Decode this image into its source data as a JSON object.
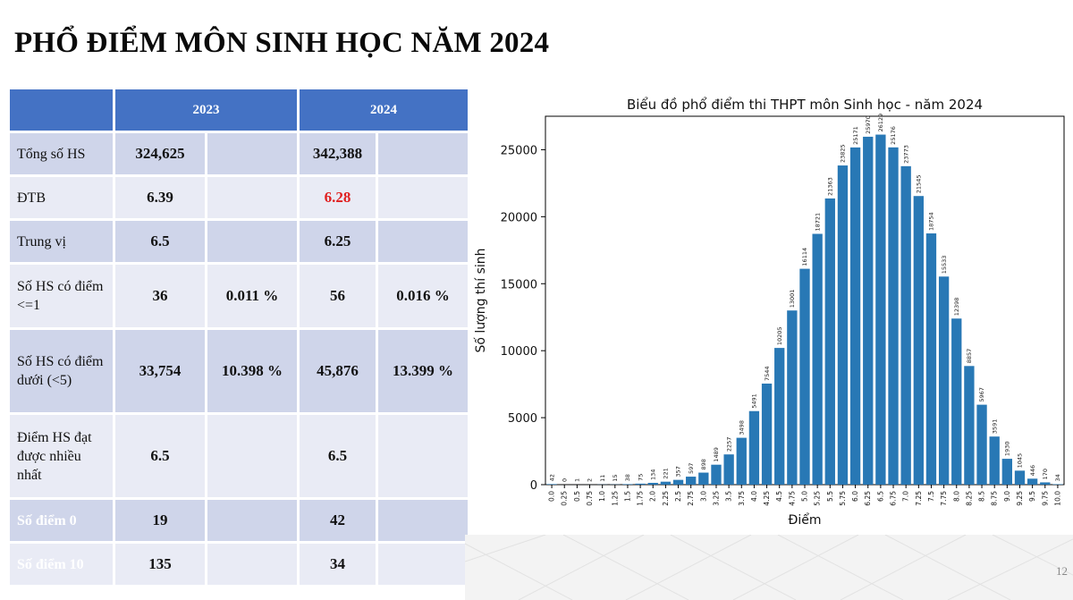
{
  "slide": {
    "title": "PHỔ ĐIỂM MÔN SINH HỌC NĂM 2024",
    "page_number": "12"
  },
  "table": {
    "headers": [
      "2023",
      "2024"
    ],
    "rows": [
      {
        "label": "Tổng số HS",
        "v2023": "324,625",
        "p2023": "",
        "v2024": "342,388",
        "p2024": ""
      },
      {
        "label": "ĐTB",
        "v2023": "6.39",
        "p2023": "",
        "v2024": "6.28",
        "p2024": ""
      },
      {
        "label": "Trung vị",
        "v2023": "6.5",
        "p2023": "",
        "v2024": "6.25",
        "p2024": ""
      },
      {
        "label": "Số HS có điểm <=1",
        "v2023": "36",
        "p2023": "0.011 %",
        "v2024": "56",
        "p2024": "0.016 %"
      },
      {
        "label": "Số HS có điểm dưới (<5)",
        "v2023": "33,754",
        "p2023": "10.398 %",
        "v2024": "45,876",
        "p2024": "13.399 %"
      },
      {
        "label": "Điểm HS đạt được nhiều nhất",
        "v2023": "6.5",
        "p2023": "",
        "v2024": "6.5",
        "p2024": ""
      },
      {
        "label": "Số điểm 0",
        "v2023": "19",
        "p2023": "",
        "v2024": "42",
        "p2024": ""
      },
      {
        "label": "Số điểm 10",
        "v2023": "135",
        "p2023": "",
        "v2024": "34",
        "p2024": ""
      }
    ],
    "colors": {
      "header": "#4472c4",
      "row_dark": "#cfd5ea",
      "row_light": "#e9ebf5",
      "highlight": "#e02020"
    }
  },
  "chart_data": {
    "type": "bar",
    "title": "Biểu đồ phổ điểm thi THPT môn Sinh học - năm 2024",
    "xlabel": "Điểm",
    "ylabel": "Số lượng thí sinh",
    "ylim": [
      0,
      27500
    ],
    "yticks": [
      0,
      5000,
      10000,
      15000,
      20000,
      25000
    ],
    "bar_color": "#2878b5",
    "categories": [
      "0.0",
      "0.25",
      "0.5",
      "0.75",
      "1.0",
      "1.25",
      "1.5",
      "1.75",
      "2.0",
      "2.25",
      "2.5",
      "2.75",
      "3.0",
      "3.25",
      "3.5",
      "3.75",
      "4.0",
      "4.25",
      "4.5",
      "4.75",
      "5.0",
      "5.25",
      "5.5",
      "5.75",
      "6.0",
      "6.25",
      "6.5",
      "6.75",
      "7.0",
      "7.25",
      "7.5",
      "7.75",
      "8.0",
      "8.25",
      "8.5",
      "8.75",
      "9.0",
      "9.25",
      "9.5",
      "9.75",
      "10.0"
    ],
    "values": [
      42,
      0,
      1,
      2,
      11,
      15,
      38,
      75,
      134,
      221,
      357,
      597,
      898,
      1489,
      2257,
      3498,
      5491,
      7544,
      10205,
      13001,
      16114,
      18721,
      21363,
      23825,
      25171,
      25970,
      26129,
      25176,
      23773,
      21545,
      18754,
      15533,
      12398,
      8857,
      5967,
      3591,
      1930,
      1045,
      446,
      170,
      34
    ],
    "grid": false,
    "legend": "none"
  }
}
